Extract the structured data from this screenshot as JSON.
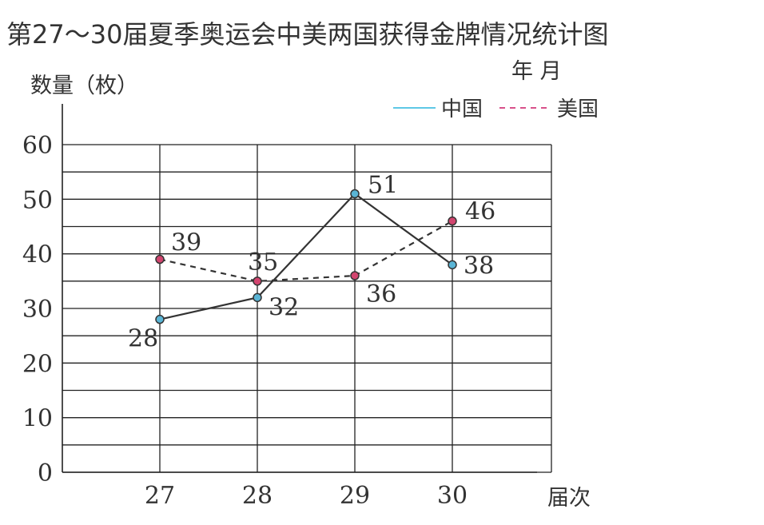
{
  "chart_data": {
    "type": "line",
    "title": "第27～30届夏季奥运会中美两国获得金牌情况统计图",
    "date_note": "年  月",
    "ylabel": "数量（枚）",
    "xlabel": "届次",
    "categories": [
      "27",
      "28",
      "29",
      "30"
    ],
    "ylim": [
      0,
      60
    ],
    "yticks": [
      "0",
      "10",
      "20",
      "30",
      "40",
      "50",
      "60"
    ],
    "grid": true,
    "legend_position": "top-right",
    "series": [
      {
        "name": "中国",
        "values": [
          28,
          32,
          51,
          38
        ],
        "line_color": "#333333",
        "legend_color": "#5ec8e6",
        "marker_color": "#5ab5d6",
        "dash": false
      },
      {
        "name": "美国",
        "values": [
          39,
          35,
          36,
          46
        ],
        "line_color": "#333333",
        "legend_color": "#d8508a",
        "marker_color": "#d2456f",
        "dash": true
      }
    ]
  }
}
